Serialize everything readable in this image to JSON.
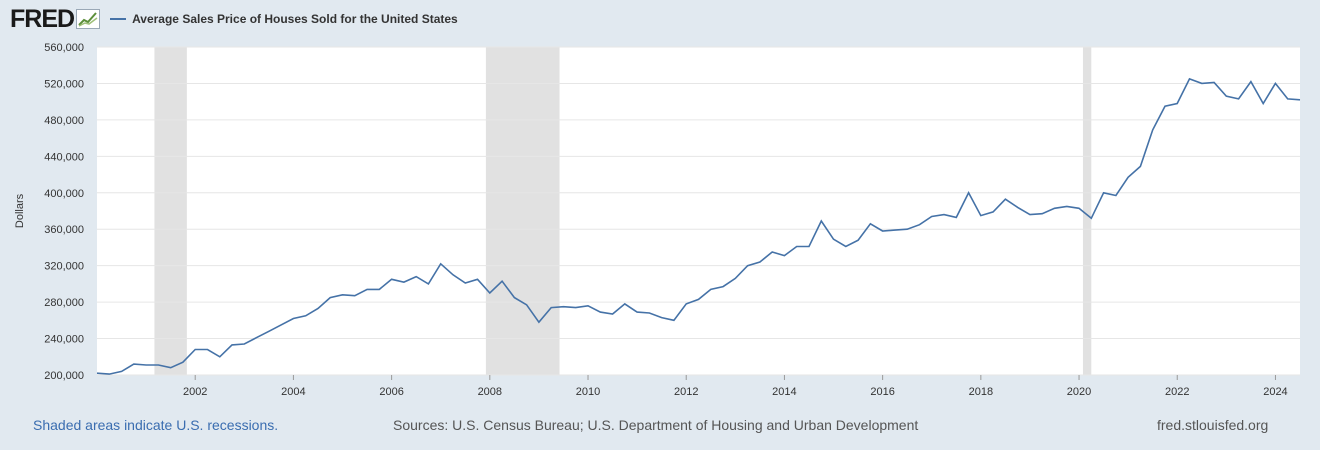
{
  "header": {
    "logo_text": "FRED",
    "legend_label": "Average Sales Price of Houses Sold for the United States"
  },
  "footer": {
    "recession_note": "Shaded areas indicate U.S. recessions.",
    "sources": "Sources: U.S. Census Bureau; U.S. Department of Housing and Urban Development",
    "site": "fred.stlouisfed.org"
  },
  "colors": {
    "line": "#4572a7",
    "recession": "#e1e1e1",
    "background": "#e1e9f0",
    "plot": "#ffffff",
    "link": "#3a6db0"
  },
  "chart_data": {
    "type": "line",
    "title": "",
    "xlabel": "",
    "ylabel": "Dollars",
    "ylim": [
      200000,
      560000
    ],
    "xlim": [
      2000.0,
      2024.5
    ],
    "grid": true,
    "legend": "top-left",
    "y_ticks": [
      200000,
      240000,
      280000,
      320000,
      360000,
      400000,
      440000,
      480000,
      520000,
      560000
    ],
    "y_tick_labels": [
      "200,000",
      "240,000",
      "280,000",
      "320,000",
      "360,000",
      "400,000",
      "440,000",
      "480,000",
      "520,000",
      "560,000"
    ],
    "x_ticks": [
      2002,
      2004,
      2006,
      2008,
      2010,
      2012,
      2014,
      2016,
      2018,
      2020,
      2022,
      2024
    ],
    "x_tick_labels": [
      "2002",
      "2004",
      "2006",
      "2008",
      "2010",
      "2012",
      "2014",
      "2016",
      "2018",
      "2020",
      "2022",
      "2024"
    ],
    "recessions": [
      [
        2001.17,
        2001.83
      ],
      [
        2007.92,
        2009.42
      ],
      [
        2020.08,
        2020.25
      ]
    ],
    "series": [
      {
        "x": [
          "2000-Q1",
          "2000-Q2",
          "2000-Q3",
          "2000-Q4",
          "2001-Q1",
          "2001-Q2",
          "2001-Q3",
          "2001-Q4",
          "2002-Q1",
          "2002-Q2",
          "2002-Q3",
          "2002-Q4",
          "2003-Q1",
          "2003-Q2",
          "2003-Q3",
          "2003-Q4",
          "2004-Q1",
          "2004-Q2",
          "2004-Q3",
          "2004-Q4",
          "2005-Q1",
          "2005-Q2",
          "2005-Q3",
          "2005-Q4",
          "2006-Q1",
          "2006-Q2",
          "2006-Q3",
          "2006-Q4",
          "2007-Q1",
          "2007-Q2",
          "2007-Q3",
          "2007-Q4",
          "2008-Q1",
          "2008-Q2",
          "2008-Q3",
          "2008-Q4",
          "2009-Q1",
          "2009-Q2",
          "2009-Q3",
          "2009-Q4",
          "2010-Q1",
          "2010-Q2",
          "2010-Q3",
          "2010-Q4",
          "2011-Q1",
          "2011-Q2",
          "2011-Q3",
          "2011-Q4",
          "2012-Q1",
          "2012-Q2",
          "2012-Q3",
          "2012-Q4",
          "2013-Q1",
          "2013-Q2",
          "2013-Q3",
          "2013-Q4",
          "2014-Q1",
          "2014-Q2",
          "2014-Q3",
          "2014-Q4",
          "2015-Q1",
          "2015-Q2",
          "2015-Q3",
          "2015-Q4",
          "2016-Q1",
          "2016-Q2",
          "2016-Q3",
          "2016-Q4",
          "2017-Q1",
          "2017-Q2",
          "2017-Q3",
          "2017-Q4",
          "2018-Q1",
          "2018-Q2",
          "2018-Q3",
          "2018-Q4",
          "2019-Q1",
          "2019-Q2",
          "2019-Q3",
          "2019-Q4",
          "2020-Q1",
          "2020-Q2",
          "2020-Q3",
          "2020-Q4",
          "2021-Q1",
          "2021-Q2",
          "2021-Q3",
          "2021-Q4",
          "2022-Q1",
          "2022-Q2",
          "2022-Q3",
          "2022-Q4",
          "2023-Q1",
          "2023-Q2",
          "2023-Q3",
          "2023-Q4",
          "2024-Q1",
          "2024-Q2",
          "2024-Q3"
        ],
        "values": [
          202000,
          201000,
          204000,
          212000,
          211000,
          211000,
          208000,
          214000,
          228000,
          228000,
          220000,
          233000,
          234000,
          241000,
          248000,
          255000,
          262000,
          265000,
          273000,
          285000,
          288000,
          287000,
          294000,
          294000,
          305000,
          302000,
          308000,
          300000,
          322000,
          310000,
          301000,
          305000,
          290000,
          303000,
          285000,
          277000,
          258000,
          274000,
          275000,
          274000,
          276000,
          269000,
          267000,
          278000,
          269000,
          268000,
          263000,
          260000,
          278000,
          283000,
          294000,
          297000,
          306000,
          320000,
          324000,
          335000,
          331000,
          341000,
          341000,
          369000,
          349000,
          341000,
          348000,
          366000,
          358000,
          359000,
          360000,
          365000,
          374000,
          376000,
          373000,
          400000,
          375000,
          379000,
          393000,
          384000,
          376000,
          377000,
          383000,
          385000,
          383000,
          372000,
          400000,
          397000,
          417000,
          429000,
          469000,
          495000,
          498000,
          525000,
          520000,
          521000,
          506000,
          503000,
          522000,
          498000,
          520000,
          503000,
          502000
        ]
      }
    ]
  }
}
